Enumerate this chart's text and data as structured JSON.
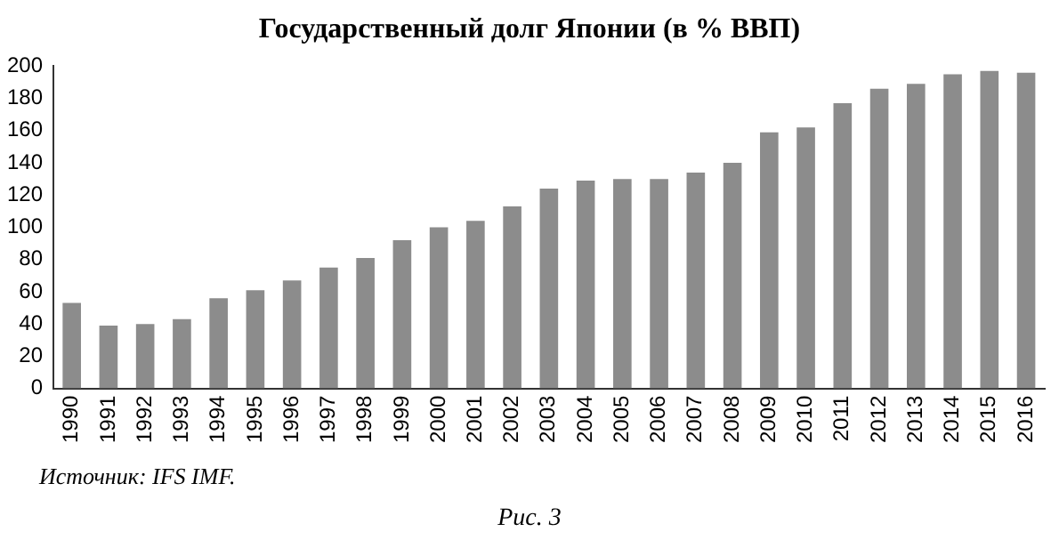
{
  "chart_data": {
    "type": "bar",
    "title": "Государственный долг Японии (в % ВВП)",
    "categories": [
      "1990",
      "1991",
      "1992",
      "1993",
      "1994",
      "1995",
      "1996",
      "1997",
      "1998",
      "1999",
      "2000",
      "2001",
      "2002",
      "2003",
      "2004",
      "2005",
      "2006",
      "2007",
      "2008",
      "2009",
      "2010",
      "2011",
      "2012",
      "2013",
      "2014",
      "2015",
      "2016"
    ],
    "values": [
      53,
      39,
      40,
      43,
      56,
      61,
      67,
      75,
      81,
      92,
      100,
      104,
      113,
      124,
      129,
      130,
      130,
      134,
      140,
      159,
      162,
      177,
      186,
      189,
      195,
      197,
      196
    ],
    "color": "#8c8c8c",
    "ylim": [
      0,
      200
    ],
    "yticks": [
      0,
      20,
      40,
      60,
      80,
      100,
      120,
      140,
      160,
      180,
      200
    ],
    "grid": false,
    "legend": false,
    "annotations": [
      "Источник: IFS IMF.",
      "Рис. 3"
    ]
  }
}
